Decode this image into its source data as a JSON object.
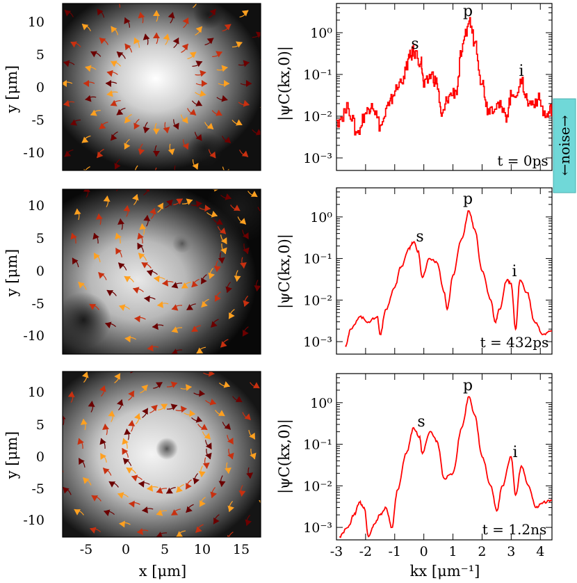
{
  "left_axis": {
    "ylabel": "y [μm]",
    "xlabel": "x [μm]",
    "yticks": [
      "10",
      "5",
      "0",
      "-5",
      "-10"
    ],
    "xticks": [
      "-5",
      "0",
      "5",
      "10",
      "15"
    ]
  },
  "right_axis": {
    "ylabel": "|ψC(kx,0)|",
    "xlabel": "kx [μm⁻¹]",
    "yticks": [
      "10⁰",
      "10⁻¹",
      "10⁻²",
      "10⁻³"
    ],
    "xticks": [
      "-3",
      "-2",
      "-1",
      "0",
      "1",
      "2",
      "3",
      "4"
    ]
  },
  "noise_label": "←noise→",
  "colors": {
    "line": "#ff0000",
    "noise_box": "#70d8d8",
    "arrow_dark": "#6b0000",
    "arrow_mid": "#c83010",
    "arrow_light": "#ffa020"
  },
  "chart_data": [
    {
      "type": "heatmap",
      "panel": "density-streamlines-top",
      "xlim": [
        -8,
        17
      ],
      "ylim": [
        -13,
        13
      ],
      "xlabel": "",
      "ylabel": "y [μm]",
      "features": "bright condensate centered near (3,1), vortices near (8,12) and (9,-10)"
    },
    {
      "type": "line",
      "panel": "spectrum-top",
      "time_label": "t = 0ps",
      "xlim": [
        -3,
        4.4
      ],
      "ylim_log10": [
        -3.3,
        0.7
      ],
      "peaks": [
        {
          "label": "s",
          "kx": -0.35,
          "value": 0.35
        },
        {
          "label": "p",
          "kx": 1.55,
          "value": 1.9
        },
        {
          "label": "i",
          "kx": 3.35,
          "value": 0.06
        }
      ],
      "x": [
        -3.0,
        -2.6,
        -2.3,
        -2.0,
        -1.8,
        -1.5,
        -1.2,
        -1.0,
        -0.7,
        -0.5,
        -0.35,
        -0.1,
        0.0,
        0.25,
        0.45,
        0.6,
        0.85,
        1.1,
        1.3,
        1.55,
        1.75,
        2.0,
        2.2,
        2.5,
        2.8,
        3.0,
        3.35,
        3.6,
        3.9,
        4.2,
        4.4
      ],
      "y": [
        0.008,
        0.015,
        0.004,
        0.012,
        0.02,
        0.006,
        0.018,
        0.04,
        0.09,
        0.25,
        0.35,
        0.2,
        0.05,
        0.1,
        0.06,
        0.01,
        0.03,
        0.04,
        0.35,
        1.9,
        0.6,
        0.06,
        0.015,
        0.02,
        0.01,
        0.03,
        0.06,
        0.02,
        0.025,
        0.01,
        0.015
      ]
    },
    {
      "type": "heatmap",
      "panel": "density-streamlines-middle",
      "xlim": [
        -8,
        17
      ],
      "ylim": [
        -13,
        13
      ],
      "xlabel": "",
      "ylabel": "y [μm]",
      "features": "rotating condensate with vortex near (7,4)"
    },
    {
      "type": "line",
      "panel": "spectrum-middle",
      "time_label": "t = 432ps",
      "xlim": [
        -3,
        4.4
      ],
      "ylim_log10": [
        -3.3,
        0.7
      ],
      "peaks": [
        {
          "label": "s",
          "kx": -0.35,
          "value": 0.25
        },
        {
          "label": "p",
          "kx": 1.55,
          "value": 1.4
        },
        {
          "label": "i",
          "kx": 3.3,
          "value": 0.03
        }
      ],
      "x": [
        -2.7,
        -2.5,
        -2.2,
        -1.9,
        -1.6,
        -1.5,
        -1.3,
        -1.0,
        -0.8,
        -0.5,
        -0.35,
        -0.2,
        -0.05,
        0.2,
        0.45,
        0.7,
        0.8,
        1.0,
        1.3,
        1.55,
        1.75,
        2.0,
        2.3,
        2.45,
        2.6,
        2.85,
        3.0,
        3.15,
        3.3,
        3.55,
        3.8,
        4.1,
        4.4
      ],
      "y": [
        0.0008,
        0.002,
        0.004,
        0.003,
        0.004,
        0.0015,
        0.006,
        0.02,
        0.06,
        0.18,
        0.25,
        0.15,
        0.035,
        0.1,
        0.08,
        0.015,
        0.006,
        0.04,
        0.3,
        1.4,
        0.5,
        0.05,
        0.01,
        0.003,
        0.006,
        0.03,
        0.025,
        0.002,
        0.03,
        0.015,
        0.003,
        0.0015,
        0.0018
      ]
    },
    {
      "type": "heatmap",
      "panel": "density-streamlines-bottom",
      "xlim": [
        -8,
        17
      ],
      "ylim": [
        -13,
        13
      ],
      "xlabel": "x [μm]",
      "ylabel": "y [μm]",
      "features": "condensate with central vortex near (5,0)"
    },
    {
      "type": "line",
      "panel": "spectrum-bottom",
      "time_label": "t = 1.2ns",
      "xlim": [
        -3,
        4.4
      ],
      "ylim_log10": [
        -3.3,
        0.7
      ],
      "peaks": [
        {
          "label": "s",
          "kx": -0.35,
          "value": 0.25
        },
        {
          "label": "p",
          "kx": 1.55,
          "value": 1.4
        },
        {
          "label": "i",
          "kx": 3.0,
          "value": 0.05
        }
      ],
      "x": [
        -2.9,
        -2.6,
        -2.4,
        -2.2,
        -2.05,
        -1.9,
        -1.7,
        -1.5,
        -1.3,
        -1.1,
        -0.9,
        -0.6,
        -0.35,
        -0.15,
        -0.05,
        0.2,
        0.45,
        0.7,
        1.0,
        1.3,
        1.55,
        1.75,
        2.0,
        2.3,
        2.5,
        2.7,
        3.0,
        3.15,
        3.35,
        3.6,
        3.85,
        4.1,
        4.4
      ],
      "y": [
        0.0006,
        0.001,
        0.002,
        0.004,
        0.003,
        0.0006,
        0.0012,
        0.002,
        0.003,
        0.001,
        0.008,
        0.06,
        0.25,
        0.15,
        0.06,
        0.2,
        0.12,
        0.015,
        0.02,
        0.25,
        1.4,
        0.5,
        0.05,
        0.01,
        0.0025,
        0.01,
        0.05,
        0.006,
        0.03,
        0.01,
        0.003,
        0.004,
        0.0045
      ]
    }
  ]
}
